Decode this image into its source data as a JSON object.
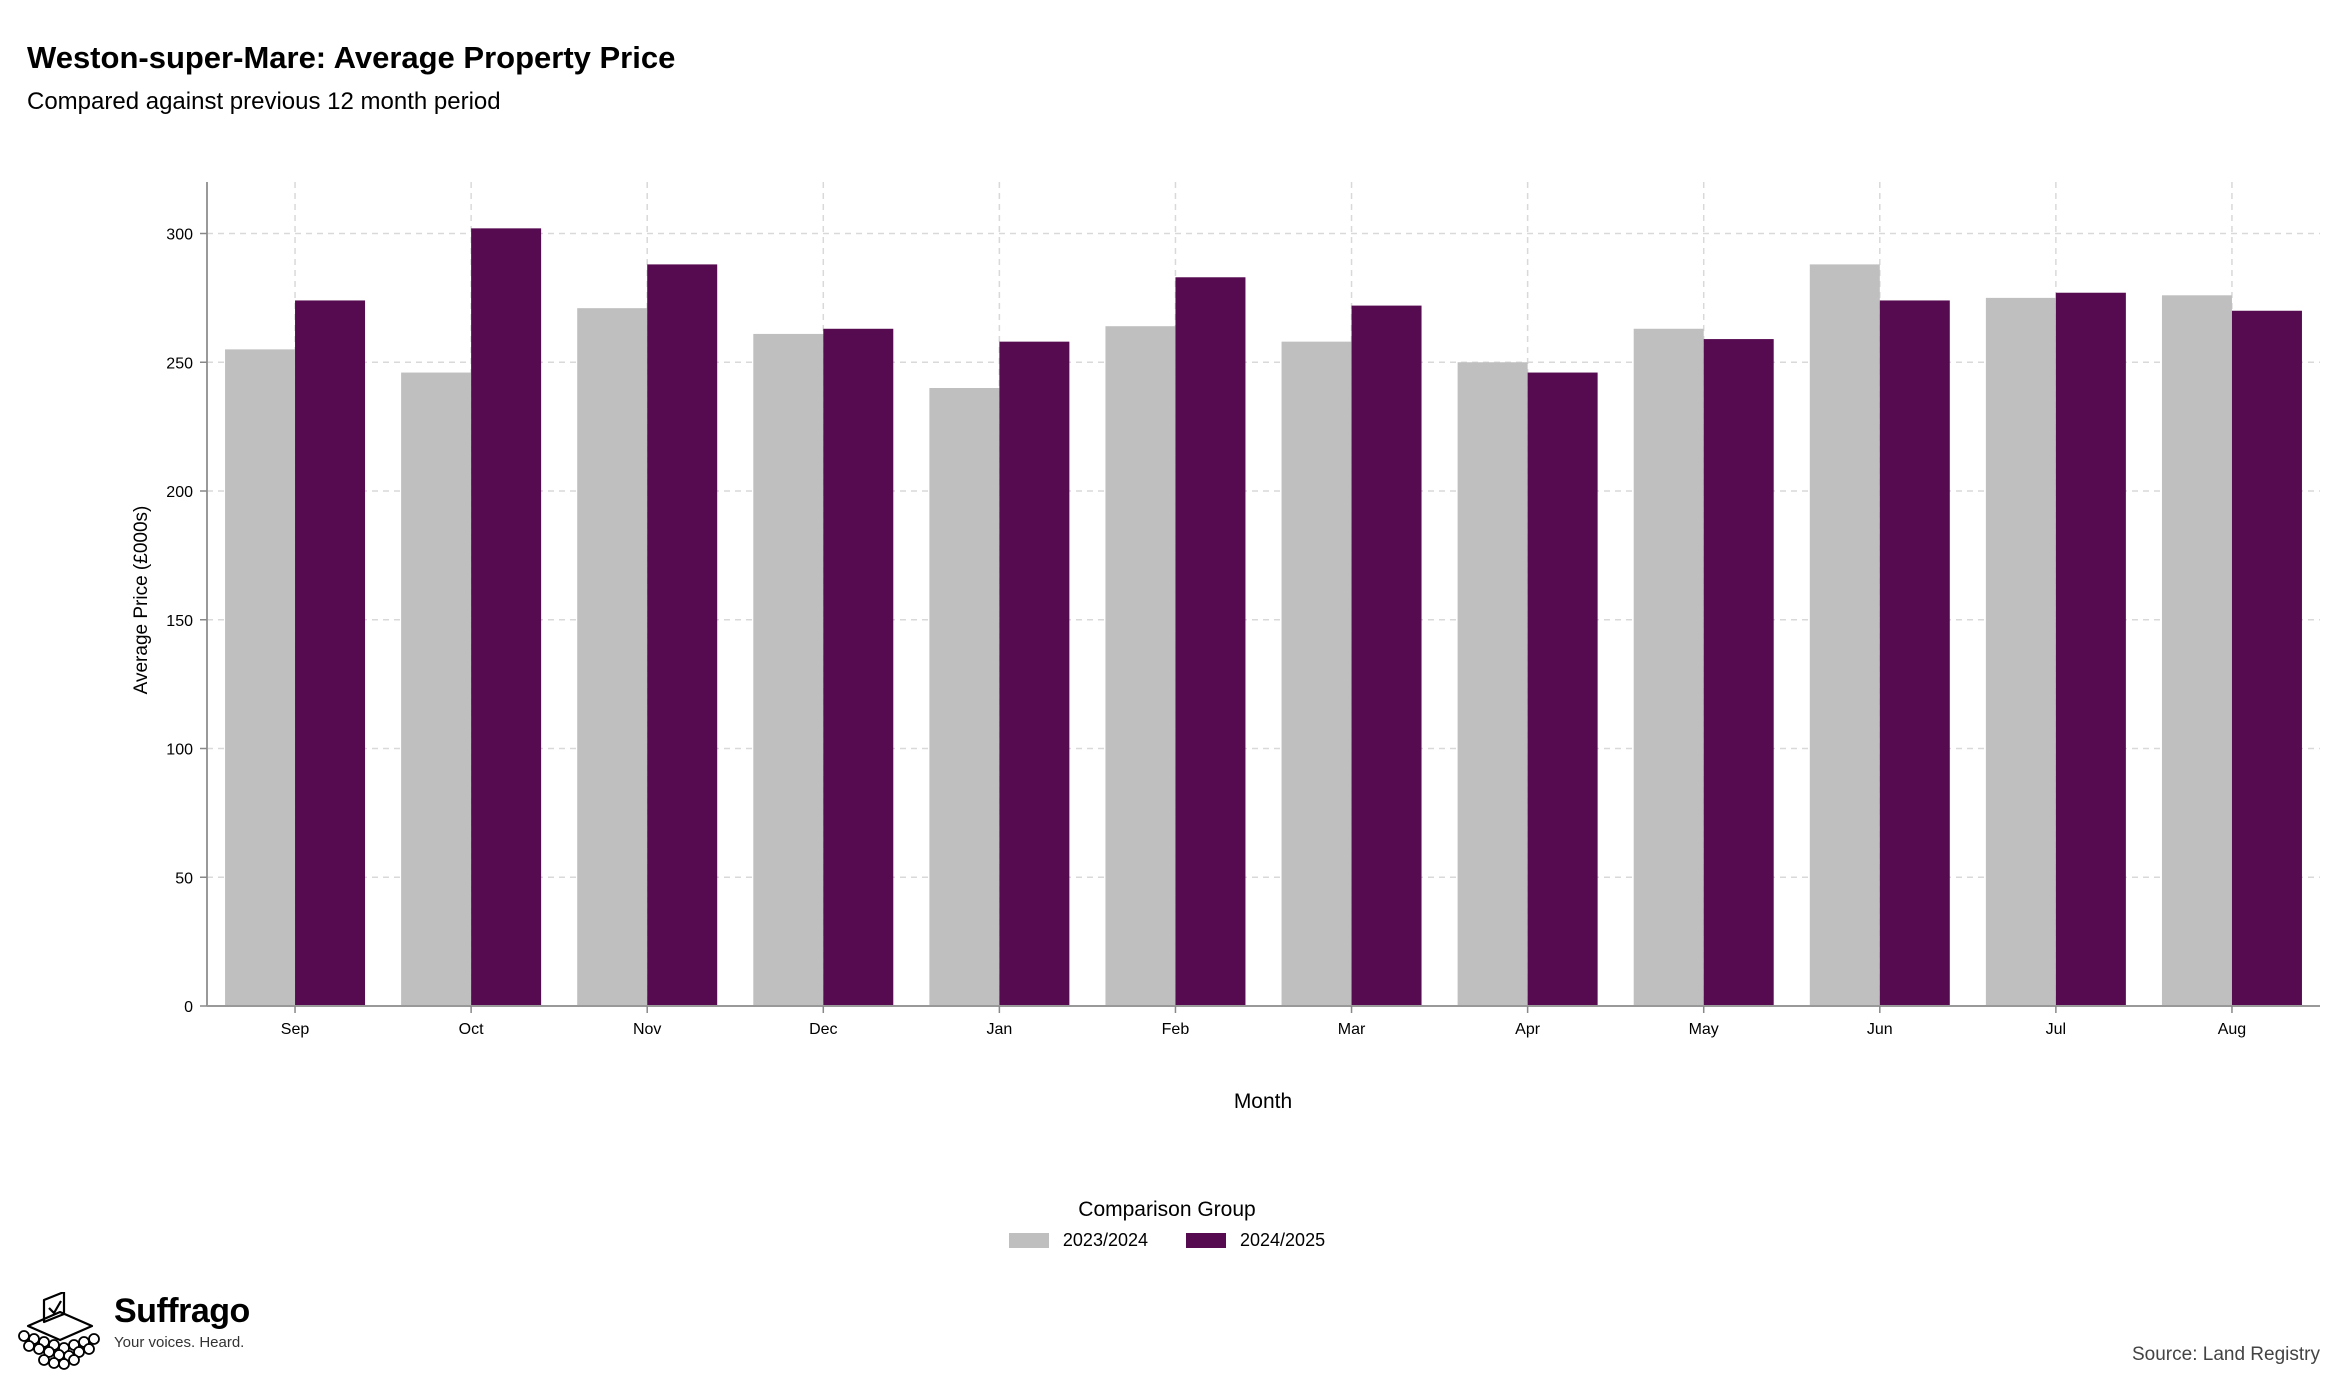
{
  "chart_data": {
    "type": "bar",
    "title": "Weston-super-Mare: Average Property Price",
    "subtitle": "Compared against previous 12 month period",
    "xlabel": "Month",
    "ylabel": "Average Price (£000s)",
    "categories": [
      "Sep",
      "Oct",
      "Nov",
      "Dec",
      "Jan",
      "Feb",
      "Mar",
      "Apr",
      "May",
      "Jun",
      "Jul",
      "Aug"
    ],
    "series": [
      {
        "name": "2023/2024",
        "color": "#bfbfbf",
        "values": [
          255,
          246,
          271,
          261,
          240,
          264,
          258,
          250,
          263,
          288,
          275,
          276
        ]
      },
      {
        "name": "2024/2025",
        "color": "#560b51",
        "values": [
          274,
          302,
          288,
          263,
          258,
          283,
          272,
          246,
          259,
          274,
          277,
          270
        ]
      }
    ],
    "yticks": [
      0,
      50,
      100,
      150,
      200,
      250,
      300
    ],
    "ylim": [
      0,
      320
    ],
    "grid": true,
    "legend_title": "Comparison Group",
    "legend_position": "bottom"
  },
  "brand": {
    "name": "Suffrago",
    "tagline": "Your voices. Heard."
  },
  "source": "Source: Land Registry"
}
